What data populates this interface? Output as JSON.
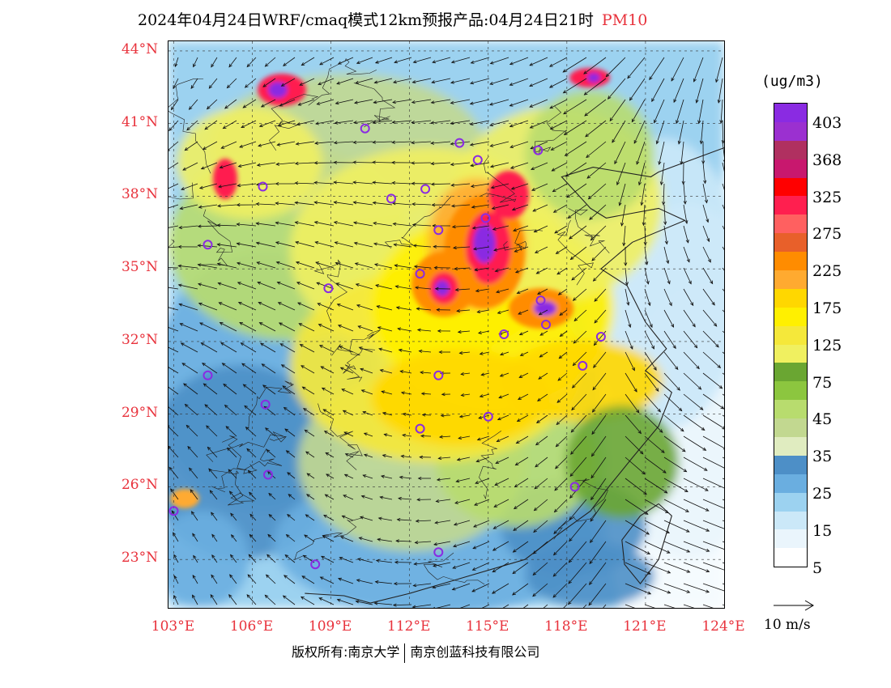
{
  "header": {
    "title": "2024年04月24日WRF/cmaq模式12km预报产品:04月24日21时",
    "product": "PM10"
  },
  "map": {
    "lat_ticks": [
      "44°N",
      "41°N",
      "38°N",
      "35°N",
      "32°N",
      "29°N",
      "26°N",
      "23°N"
    ],
    "lon_ticks": [
      "103°E",
      "106°E",
      "109°E",
      "112°E",
      "115°E",
      "118°E",
      "121°E",
      "124°E"
    ],
    "extent": {
      "lon_min": 102.8,
      "lon_max": 124.0,
      "lat_min": 21.0,
      "lat_max": 44.4
    },
    "stations": [
      [
        110.3,
        40.8
      ],
      [
        113.9,
        40.2
      ],
      [
        114.6,
        39.5
      ],
      [
        106.4,
        38.4
      ],
      [
        111.3,
        37.9
      ],
      [
        112.6,
        38.3
      ],
      [
        114.9,
        37.1
      ],
      [
        113.1,
        36.6
      ],
      [
        104.3,
        36.0
      ],
      [
        112.4,
        34.8
      ],
      [
        108.9,
        34.2
      ],
      [
        117.0,
        33.7
      ],
      [
        117.2,
        32.7
      ],
      [
        115.6,
        32.3
      ],
      [
        119.3,
        32.2
      ],
      [
        118.6,
        31.0
      ],
      [
        104.3,
        30.6
      ],
      [
        113.1,
        30.6
      ],
      [
        106.5,
        29.4
      ],
      [
        115.0,
        28.9
      ],
      [
        112.4,
        28.4
      ],
      [
        106.6,
        26.5
      ],
      [
        118.3,
        26.0
      ],
      [
        103.0,
        25.0
      ],
      [
        108.4,
        22.8
      ],
      [
        113.1,
        23.3
      ],
      [
        116.9,
        39.9
      ]
    ]
  },
  "legend": {
    "unit": "(ug/m3)",
    "labels": [
      "403",
      "368",
      "325",
      "275",
      "225",
      "175",
      "125",
      "75",
      "45",
      "35",
      "25",
      "15",
      "5"
    ],
    "colors": [
      "#8a2be2",
      "#9b30d0",
      "#b03060",
      "#c8186e",
      "#ff0000",
      "#ff1f4f",
      "#ff6060",
      "#e8602a",
      "#ff8c00",
      "#ffaa30",
      "#ffd700",
      "#fff000",
      "#f5e83a",
      "#f0f060",
      "#6aa632",
      "#8cc63f",
      "#b8dc6e",
      "#c2d890",
      "#e0ecc0",
      "#4d8fc7",
      "#6aaee0",
      "#9cd2f0",
      "#cbe8f8",
      "#eaf5fc",
      "#ffffff"
    ],
    "wind_label": "10 m/s"
  },
  "footer": {
    "owner1": "版权所有:南京大学",
    "owner2": "南京创蓝科技有限公司"
  }
}
